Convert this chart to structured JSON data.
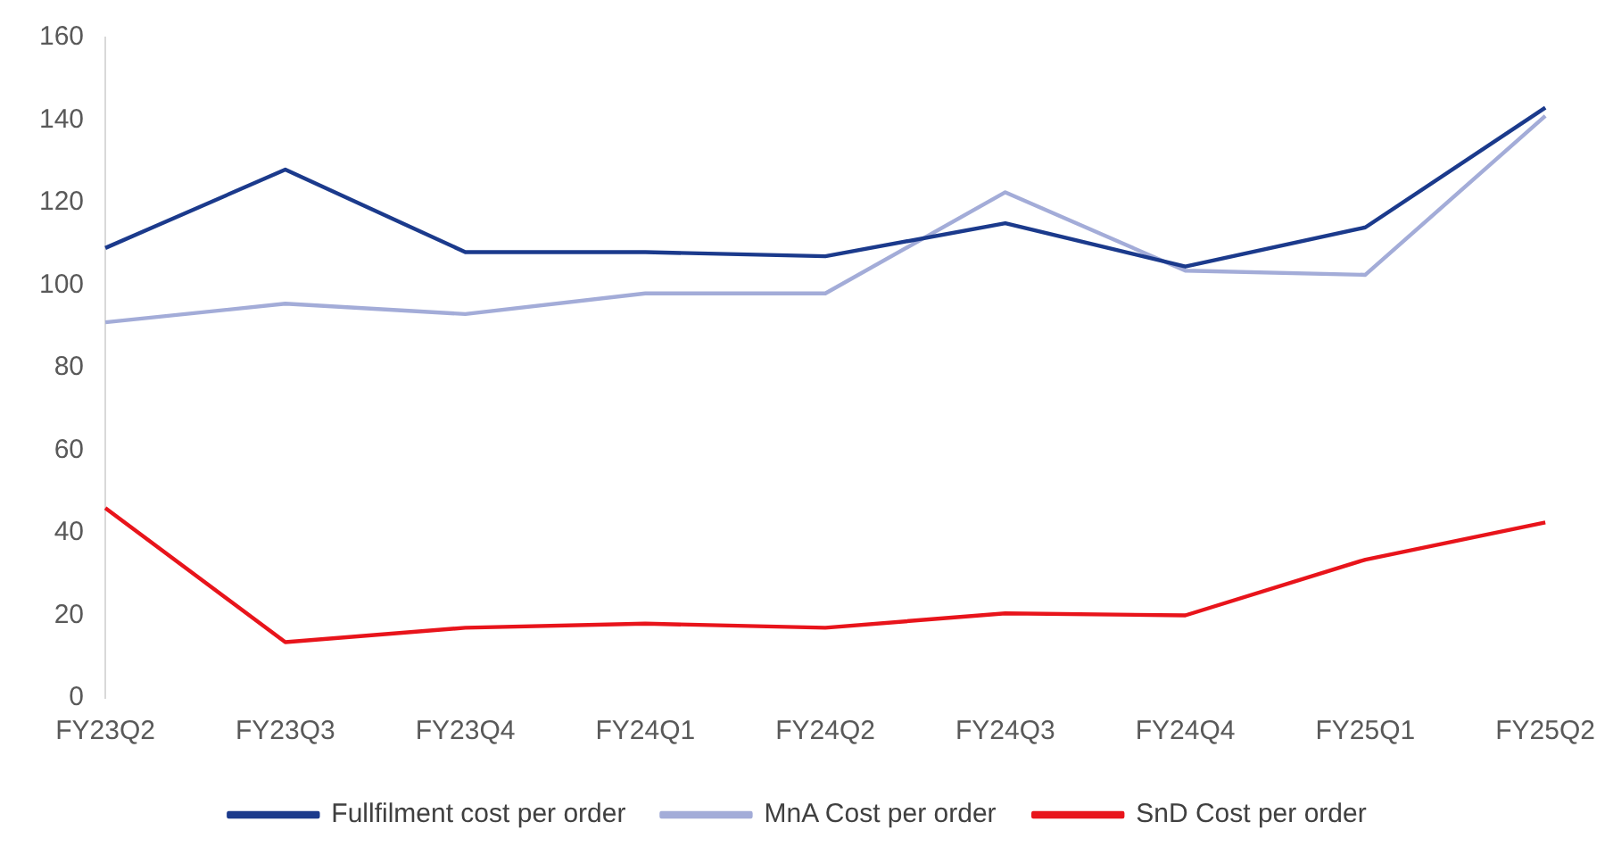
{
  "chart_data": {
    "type": "line",
    "categories": [
      "FY23Q2",
      "FY23Q3",
      "FY23Q4",
      "FY24Q1",
      "FY24Q2",
      "FY24Q3",
      "FY24Q4",
      "FY25Q1",
      "FY25Q2"
    ],
    "series": [
      {
        "name": "Fullfilment cost per order",
        "color": "#1b3a8c",
        "values": [
          109,
          128,
          108,
          108,
          107,
          115,
          104.5,
          114,
          143
        ]
      },
      {
        "name": "MnA Cost per order",
        "color": "#a3acd8",
        "values": [
          91,
          95.5,
          93,
          98,
          98,
          122.5,
          103.5,
          102.5,
          141
        ]
      },
      {
        "name": "SnD Cost per order",
        "color": "#e8141b",
        "values": [
          46,
          13.5,
          17,
          18,
          17,
          20.5,
          20,
          33.5,
          42.5
        ]
      }
    ],
    "ylim": [
      0,
      160
    ],
    "yticks": [
      0,
      20,
      40,
      60,
      80,
      100,
      120,
      140,
      160
    ],
    "grid": false,
    "legend": "bottom",
    "marker": "none",
    "line_style": "solid"
  }
}
